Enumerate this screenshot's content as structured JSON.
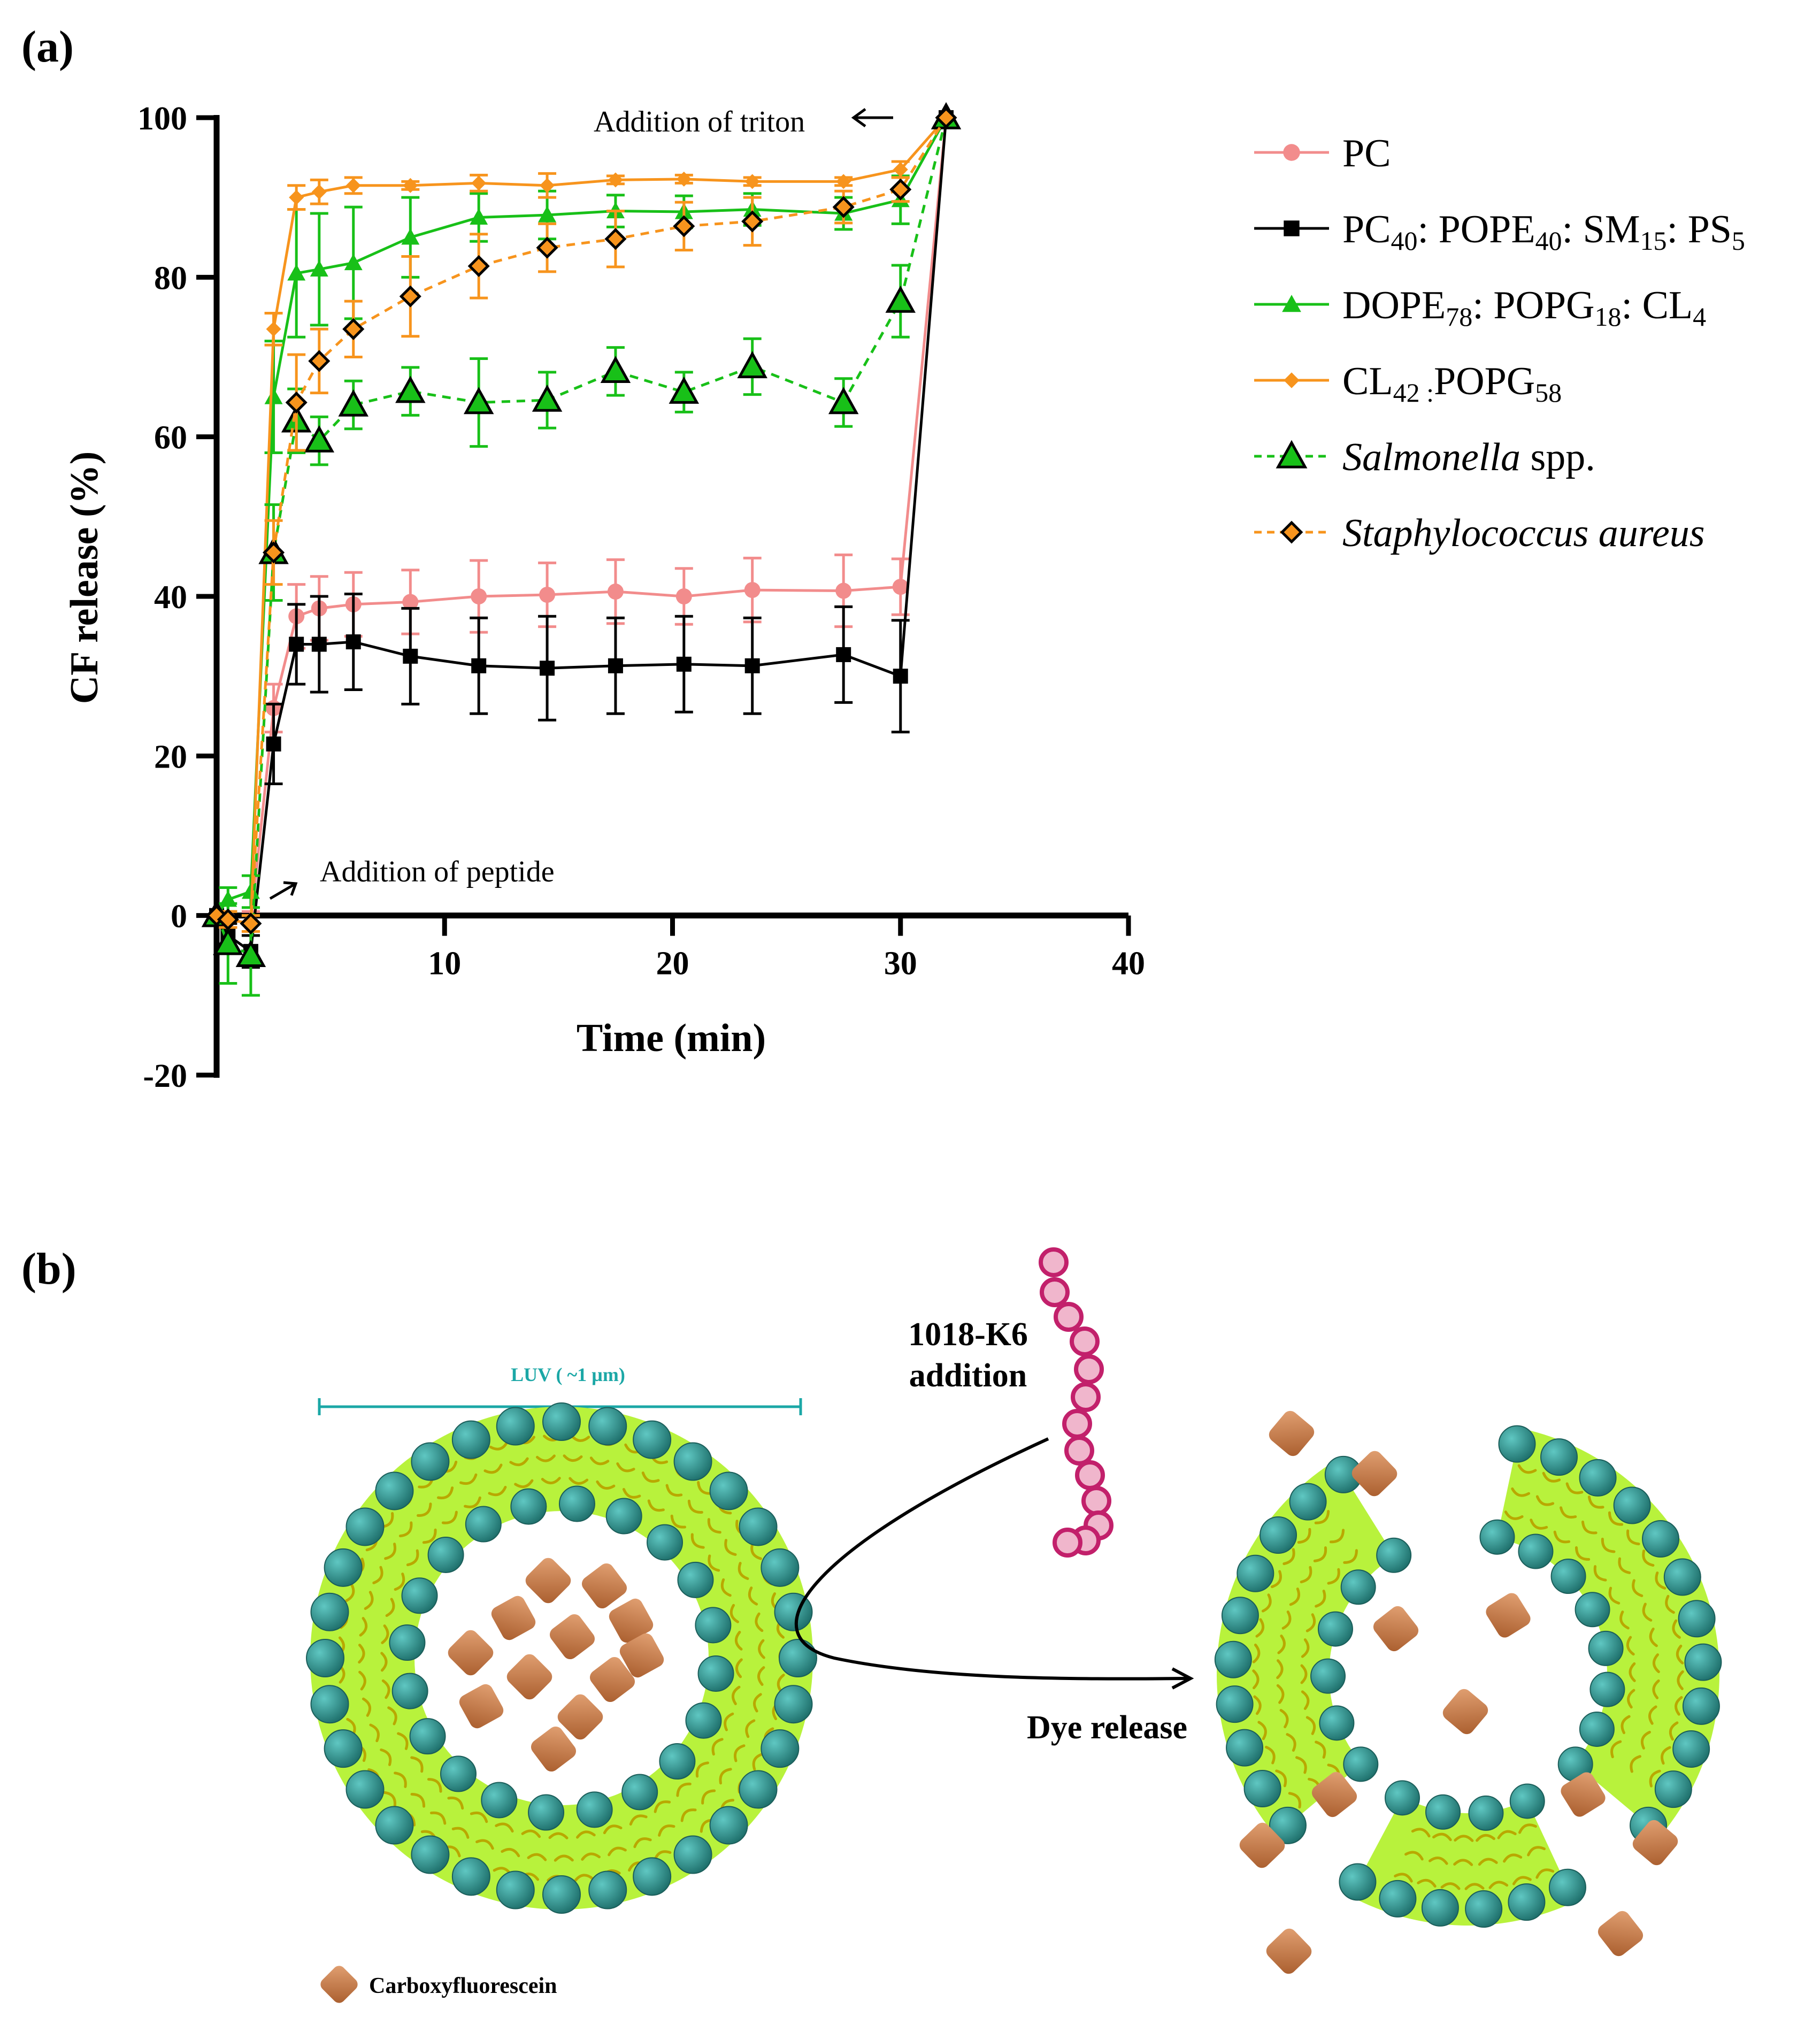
{
  "panel_a_label": "(a)",
  "panel_b_label": "(b)",
  "colors": {
    "pc": "#f28c8c",
    "mammal": "#000000",
    "gramneg": "#18c018",
    "grampos": "#f7941d",
    "axis": "#000000"
  },
  "chart_data": {
    "type": "line",
    "xlabel": "Time (min)",
    "ylabel": "CF release (%)",
    "xlim": [
      0,
      40
    ],
    "ylim": [
      -20,
      100
    ],
    "xticks": [
      10,
      20,
      30,
      40
    ],
    "yticks": [
      -20,
      0,
      20,
      40,
      60,
      80,
      100
    ],
    "x": [
      0,
      0.5,
      1.5,
      2.5,
      3.5,
      4.5,
      6,
      8.5,
      11.5,
      14.5,
      17.5,
      20.5,
      23.5,
      27.5,
      30,
      32
    ],
    "annotations": [
      {
        "text": "Addition of triton",
        "arrow": "left"
      },
      {
        "text": "Addition of peptide",
        "arrow": "up-right"
      }
    ],
    "series": [
      {
        "key": "pc",
        "name": "PC",
        "marker": "circle",
        "dash": false,
        "values": [
          0,
          -0.5,
          -1,
          26,
          37.5,
          38.5,
          39,
          39.3,
          40,
          40.2,
          40.6,
          40,
          40.8,
          40.7,
          41.2,
          100
        ],
        "errors": [
          0,
          1,
          1.5,
          3,
          4,
          4,
          4,
          4,
          4.5,
          4,
          4,
          3.5,
          4,
          4.5,
          3.5,
          0
        ]
      },
      {
        "key": "mammal",
        "name": "PC40: POPE40: SM15: PS5",
        "marker": "square",
        "dash": false,
        "values": [
          0,
          -2.5,
          -4.5,
          21.5,
          34,
          34,
          34.3,
          32.5,
          31.3,
          31,
          31.3,
          31.5,
          31.3,
          32.7,
          30,
          100
        ],
        "errors": [
          0,
          1.5,
          2,
          5,
          5,
          6,
          6,
          6,
          6,
          6.5,
          6,
          6,
          6,
          6,
          7,
          0
        ]
      },
      {
        "key": "gramneg",
        "name": "DOPE78: POPG18: CL4",
        "marker": "triangle",
        "dash": false,
        "values": [
          0,
          2,
          3,
          65,
          80.5,
          81,
          81.8,
          85,
          87.5,
          87.8,
          88.3,
          88.2,
          88.5,
          88,
          89.7,
          100
        ],
        "errors": [
          0,
          1.5,
          2,
          7,
          8,
          7,
          7,
          5,
          3,
          3,
          2,
          2,
          2,
          2,
          3,
          0
        ]
      },
      {
        "key": "grampos",
        "name": "CL42 :POPG58",
        "marker": "diamond",
        "dash": false,
        "values": [
          0,
          -0.5,
          -1,
          73.5,
          90,
          90.7,
          91.5,
          91.5,
          91.8,
          91.5,
          92.2,
          92.3,
          92,
          92,
          93.5,
          100
        ],
        "errors": [
          0,
          1,
          1,
          2,
          1.5,
          1.5,
          1,
          0.5,
          1,
          1.5,
          0.5,
          0.5,
          0.5,
          0.5,
          1,
          0
        ]
      },
      {
        "key": "salmonella",
        "name": "Salmonella spp.",
        "marker": "triangle-outline",
        "dash": true,
        "values": [
          0,
          -3.5,
          -5,
          45.5,
          62,
          59.5,
          64,
          65.7,
          64.3,
          64.6,
          68.2,
          65.6,
          68.8,
          64.3,
          77,
          100
        ],
        "errors": [
          0,
          5,
          5,
          6,
          4,
          3,
          3,
          3,
          5.5,
          3.5,
          3,
          2.5,
          3.5,
          3,
          4.5,
          0
        ]
      },
      {
        "key": "staph",
        "name": "Staphylococcus aureus",
        "marker": "diamond-outline",
        "dash": true,
        "values": [
          0,
          -0.5,
          -1,
          45.5,
          64.3,
          69.5,
          73.5,
          77.6,
          81.4,
          83.7,
          84.8,
          86.4,
          87,
          88.8,
          91,
          100
        ],
        "errors": [
          0,
          1,
          1,
          4,
          6,
          4,
          3.5,
          5,
          4,
          3,
          3.5,
          3,
          3,
          2,
          1.5,
          0
        ]
      }
    ]
  },
  "legend": [
    {
      "key": "pc",
      "parts": [
        {
          "t": "PC"
        }
      ]
    },
    {
      "key": "mammal",
      "parts": [
        {
          "t": "PC"
        },
        {
          "t": "40",
          "sub": true
        },
        {
          "t": ": POPE"
        },
        {
          "t": "40",
          "sub": true
        },
        {
          "t": ": SM"
        },
        {
          "t": "15",
          "sub": true
        },
        {
          "t": ": PS"
        },
        {
          "t": "5",
          "sub": true
        }
      ]
    },
    {
      "key": "gramneg",
      "parts": [
        {
          "t": "DOPE"
        },
        {
          "t": "78",
          "sub": true
        },
        {
          "t": ": POPG"
        },
        {
          "t": "18",
          "sub": true
        },
        {
          "t": ": CL"
        },
        {
          "t": "4",
          "sub": true
        }
      ]
    },
    {
      "key": "grampos",
      "parts": [
        {
          "t": "CL"
        },
        {
          "t": "42 :",
          "sub": true
        },
        {
          "t": "POPG"
        },
        {
          "t": "58",
          "sub": true
        }
      ]
    },
    {
      "key": "salmonella",
      "parts": [
        {
          "t": "Salmonella",
          "italic": true
        },
        {
          "t": " spp."
        }
      ]
    },
    {
      "key": "staph",
      "parts": [
        {
          "t": "Staphylococcus aureus",
          "italic": true
        }
      ]
    }
  ],
  "diagram": {
    "luv_label": "LUV ( ~1 µm)",
    "peptide_label_line1": "1018-K6",
    "peptide_label_line2": "addition",
    "dye_release": "Dye release",
    "cf_label": "Carboxyfluorescein",
    "bead_color": "#2f8f8a",
    "lipid_fill": "#b8f23c",
    "dye_color": "#c97a45",
    "peptide_color": "#c2206b",
    "luv_color": "#1ba7a6"
  }
}
